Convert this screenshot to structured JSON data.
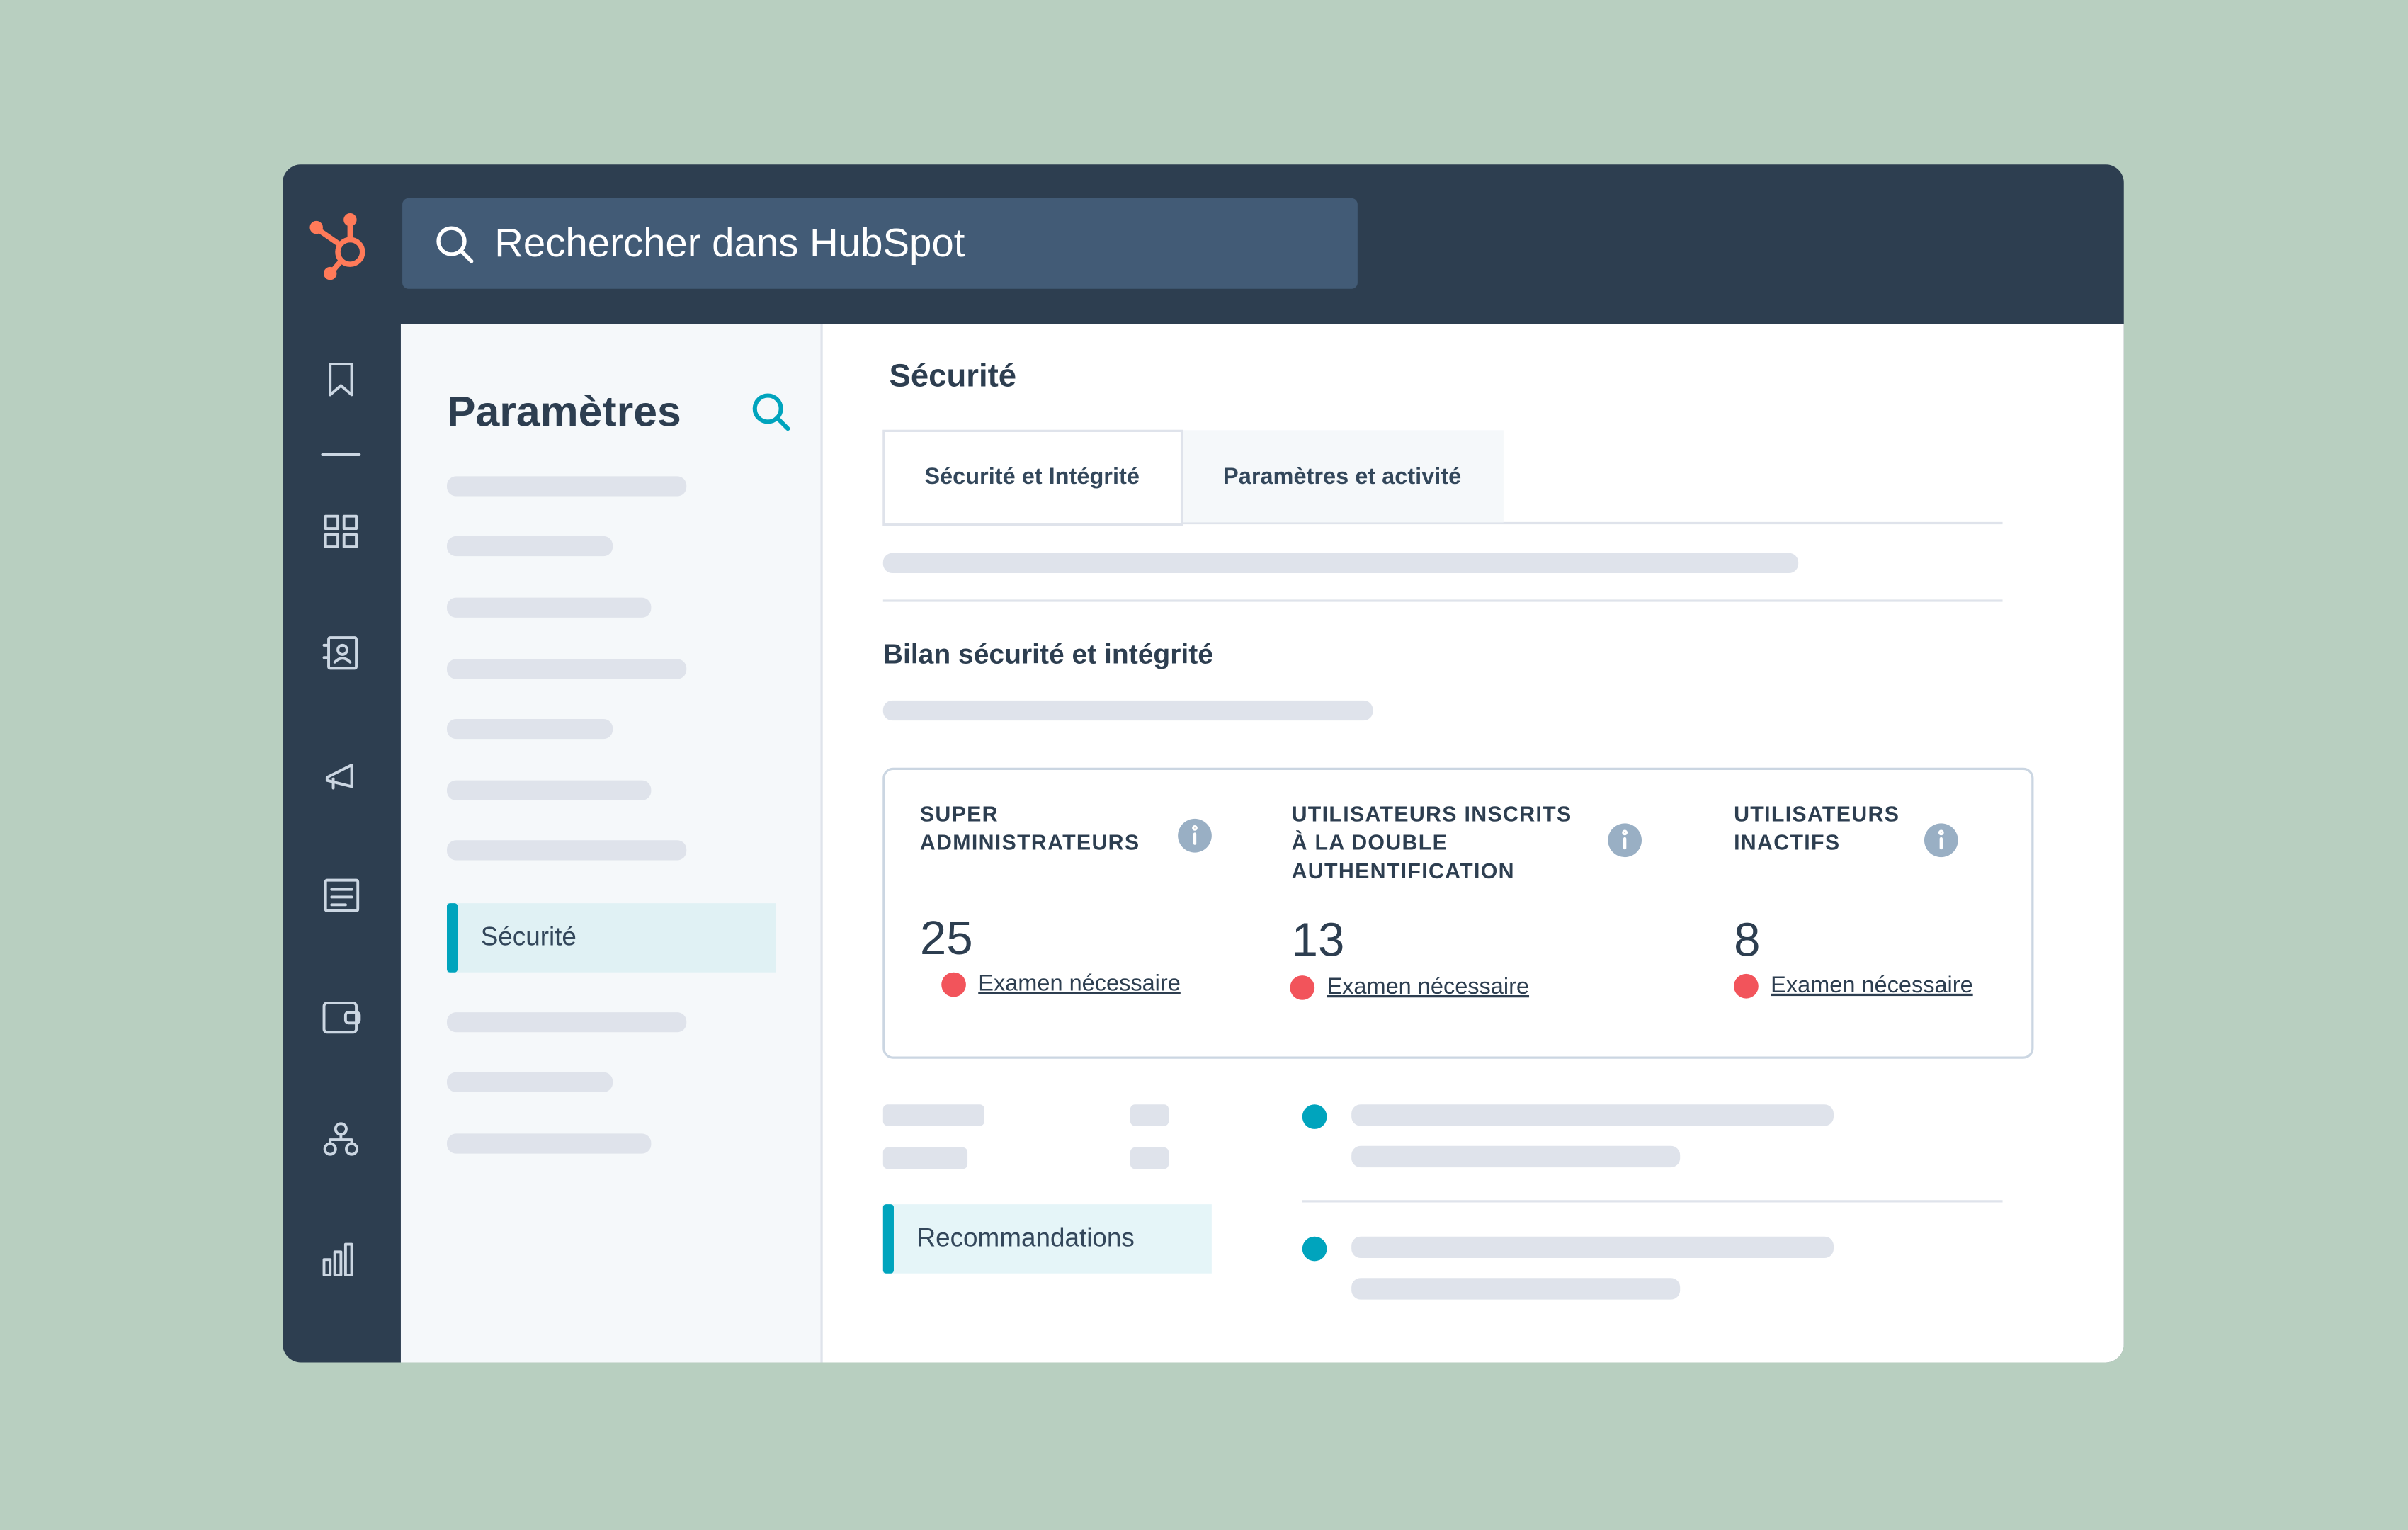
{
  "search": {
    "placeholder": "Rechercher dans HubSpot"
  },
  "sidebar": {
    "title": "Paramètres",
    "active_item": "Sécurité"
  },
  "main": {
    "title": "Sécurité",
    "tabs": [
      "Sécurité et Intégrité",
      "Paramètres et activité"
    ],
    "section_title": "Bilan sécurité et intégrité",
    "stats": [
      {
        "label_lines": [
          "SUPER",
          "ADMINISTRATEURS"
        ],
        "value": 25,
        "status": "Examen nécessaire"
      },
      {
        "label_lines": [
          "UTILISATEURS INSCRITS",
          "À LA DOUBLE",
          "AUTHENTIFICATION"
        ],
        "value": 13,
        "status": "Examen nécessaire"
      },
      {
        "label_lines": [
          "UTILISATEURS",
          "INACTIFS"
        ],
        "value": 8,
        "status": "Examen nécessaire"
      }
    ],
    "recommendations": "Recommandations"
  }
}
